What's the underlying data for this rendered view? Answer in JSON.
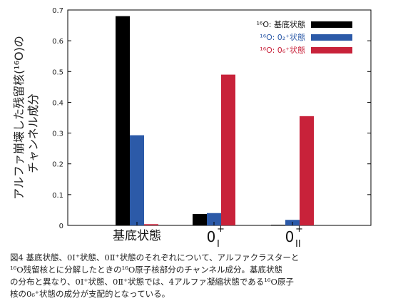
{
  "chart_data": {
    "type": "bar",
    "ylabel_line1": "アルファ崩壊した残留核(¹⁶O)の",
    "ylabel_line2": "チャンネル成分",
    "ylim": [
      0,
      0.7
    ],
    "yticks": [
      "0",
      "0.1",
      "0.2",
      "0.3",
      "0.4",
      "0.5",
      "0.6",
      "0.7"
    ],
    "categories": [
      {
        "main": "基底状態",
        "sup": "",
        "sub": ""
      },
      {
        "main": "0",
        "sup": "+",
        "sub": "I"
      },
      {
        "main": "0",
        "sup": "+",
        "sub": "II"
      }
    ],
    "series": [
      {
        "name": "¹⁶O: 基底状態",
        "color": "#000000",
        "values": [
          0.68,
          0.037,
          0.002
        ]
      },
      {
        "name": "¹⁶O: 0₂⁺状態",
        "color": "#2c5aa8",
        "values": [
          0.293,
          0.04,
          0.018
        ]
      },
      {
        "name": "¹⁶O: 0₆⁺状態",
        "color": "#c8223a",
        "values": [
          0.004,
          0.49,
          0.355
        ]
      }
    ],
    "legend_position": "top-right",
    "grid": false
  },
  "caption": {
    "line1": "図4 基底状態、0Ⅰ⁺状態、0Ⅱ⁺状態のそれぞれについて、アルファクラスターと",
    "line2": "¹⁶O残留核とに分解したときの¹⁶O原子核部分のチャンネル成分。基底状態",
    "line3": "の分布と異なり、0Ⅰ⁺状態、0Ⅱ⁺状態では、4アルファ凝縮状態である¹⁶O原子",
    "line4": "核の0₆⁺状態の成分が支配的となっている。"
  }
}
